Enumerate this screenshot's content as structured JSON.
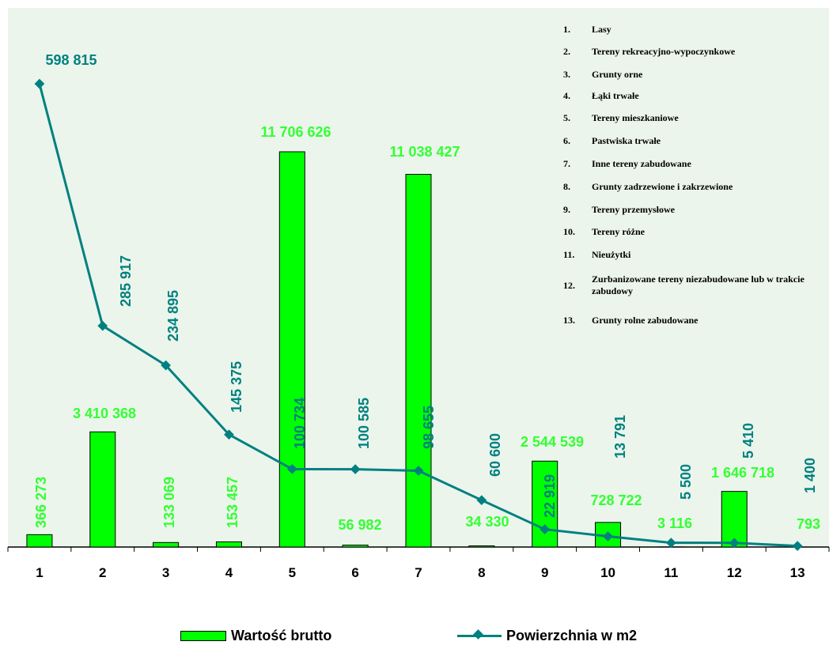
{
  "chart_data": {
    "type": "bar",
    "categories": [
      "1",
      "2",
      "3",
      "4",
      "5",
      "6",
      "7",
      "8",
      "9",
      "10",
      "11",
      "12",
      "13"
    ],
    "series": [
      {
        "name": "Wartość brutto",
        "type": "bar",
        "color": "#00ff00",
        "values": [
          366273,
          3410368,
          133069,
          153457,
          11706626,
          56982,
          11038427,
          34330,
          2544539,
          728722,
          3116,
          1646718,
          793
        ],
        "labels": [
          "366 273",
          "3 410 368",
          "133 069",
          "153 457",
          "11 706 626",
          "56 982",
          "11 038 427",
          "34 330",
          "2 544 539",
          "728 722",
          "3 116",
          "1 646 718",
          "793"
        ]
      },
      {
        "name": "Powierzchnia w m2",
        "type": "line",
        "color": "#008080",
        "values": [
          598815,
          285917,
          234895,
          145375,
          100734,
          100585,
          98655,
          60600,
          22919,
          13791,
          5500,
          5410,
          1400
        ],
        "labels": [
          "598 815",
          "285 917",
          "234 895",
          "145 375",
          "100 734",
          "100 585",
          "98 655",
          "60 600",
          "22 919",
          "13 791",
          "5 500",
          "5 410",
          "1 400"
        ]
      }
    ],
    "grid": false,
    "legend_position": "bottom"
  },
  "category_legend": [
    {
      "num": "1.",
      "text": "Lasy"
    },
    {
      "num": "2.",
      "text": "Tereny rekreacyjno-wypoczynkowe"
    },
    {
      "num": "3.",
      "text": "Grunty orne"
    },
    {
      "num": "4.",
      "text": "Łąki trwałe"
    },
    {
      "num": "5.",
      "text": "Tereny mieszkaniowe"
    },
    {
      "num": "6.",
      "text": "Pastwiska trwałe"
    },
    {
      "num": "7.",
      "text": "Inne tereny zabudowane"
    },
    {
      "num": "8.",
      "text": "Grunty zadrzewione i zakrzewione"
    },
    {
      "num": "9.",
      "text": "Tereny przemysłowe"
    },
    {
      "num": "10.",
      "text": "Tereny różne"
    },
    {
      "num": "11.",
      "text": "Nieużytki"
    },
    {
      "num": "12.",
      "text": "Zurbanizowane tereny niezabudowane lub w trakcie zabudowy"
    },
    {
      "num": "13.",
      "text": "Grunty rolne zabudowane"
    }
  ],
  "legend": {
    "bar_label": "Wartość brutto",
    "line_label": "Powierzchnia w m2"
  }
}
